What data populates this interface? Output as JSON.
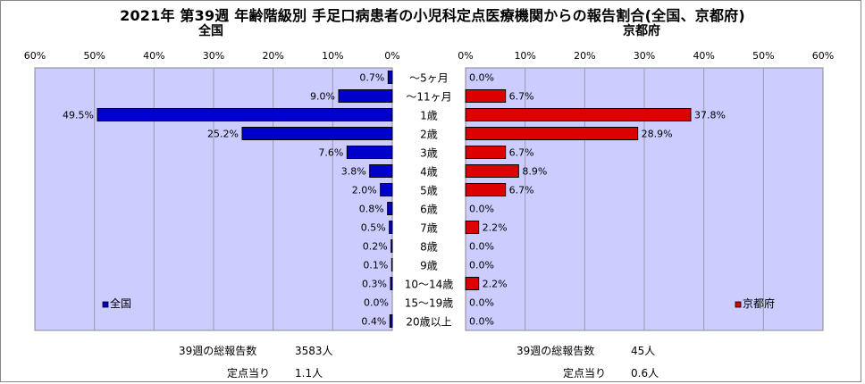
{
  "title": "2021年 第39週 年齢階級別 手足口病患者の小児科定点医療機関からの報告割合(全国、京都府)",
  "chart_data": [
    {
      "type": "bar",
      "orientation": "horizontal",
      "panel_title": "全国",
      "legend": "全国",
      "legend_position": "bottom-left",
      "color": "#0000cc",
      "xlim": [
        0,
        60
      ],
      "x_direction": "reversed",
      "ticks": [
        "0%",
        "10%",
        "20%",
        "30%",
        "40%",
        "50%",
        "60%"
      ],
      "grid": true,
      "categories": [
        "〜5ヶ月",
        "〜11ヶ月",
        "1歳",
        "2歳",
        "3歳",
        "4歳",
        "5歳",
        "6歳",
        "7歳",
        "8歳",
        "9歳",
        "10〜14歳",
        "15〜19歳",
        "20歳以上"
      ],
      "values": [
        0.7,
        9.0,
        49.5,
        25.2,
        7.6,
        3.8,
        2.0,
        0.8,
        0.5,
        0.2,
        0.1,
        0.3,
        0.0,
        0.4
      ],
      "labels": [
        "0.7%",
        "9.0%",
        "49.5%",
        "25.2%",
        "7.6%",
        "3.8%",
        "2.0%",
        "0.8%",
        "0.5%",
        "0.2%",
        "0.1%",
        "0.3%",
        "0.0%",
        "0.4%"
      ]
    },
    {
      "type": "bar",
      "orientation": "horizontal",
      "panel_title": "京都府",
      "legend": "京都府",
      "legend_position": "bottom-right",
      "color": "#dd0000",
      "xlim": [
        0,
        60
      ],
      "x_direction": "normal",
      "ticks": [
        "0%",
        "10%",
        "20%",
        "30%",
        "40%",
        "50%",
        "60%"
      ],
      "grid": true,
      "categories": [
        "〜5ヶ月",
        "〜11ヶ月",
        "1歳",
        "2歳",
        "3歳",
        "4歳",
        "5歳",
        "6歳",
        "7歳",
        "8歳",
        "9歳",
        "10〜14歳",
        "15〜19歳",
        "20歳以上"
      ],
      "values": [
        0.0,
        6.7,
        37.8,
        28.9,
        6.7,
        8.9,
        6.7,
        0.0,
        2.2,
        0.0,
        0.0,
        2.2,
        0.0,
        0.0
      ],
      "labels": [
        "0.0%",
        "6.7%",
        "37.8%",
        "28.9%",
        "6.7%",
        "8.9%",
        "6.7%",
        "0.0%",
        "2.2%",
        "0.0%",
        "0.0%",
        "2.2%",
        "0.0%",
        "0.0%"
      ]
    }
  ],
  "footer": {
    "national": {
      "total_label": "39週の総報告数",
      "total_value": "3583人",
      "per_site_label": "定点当り",
      "per_site_value": "1.1人"
    },
    "kyoto": {
      "total_label": "39週の総報告数",
      "total_value": "45人",
      "per_site_label": "定点当り",
      "per_site_value": "0.6人"
    }
  },
  "colors": {
    "plot_bg": "#ccccff",
    "grid": "#9999aa",
    "national_bar": "#0000cc",
    "kyoto_bar": "#dd0000"
  }
}
